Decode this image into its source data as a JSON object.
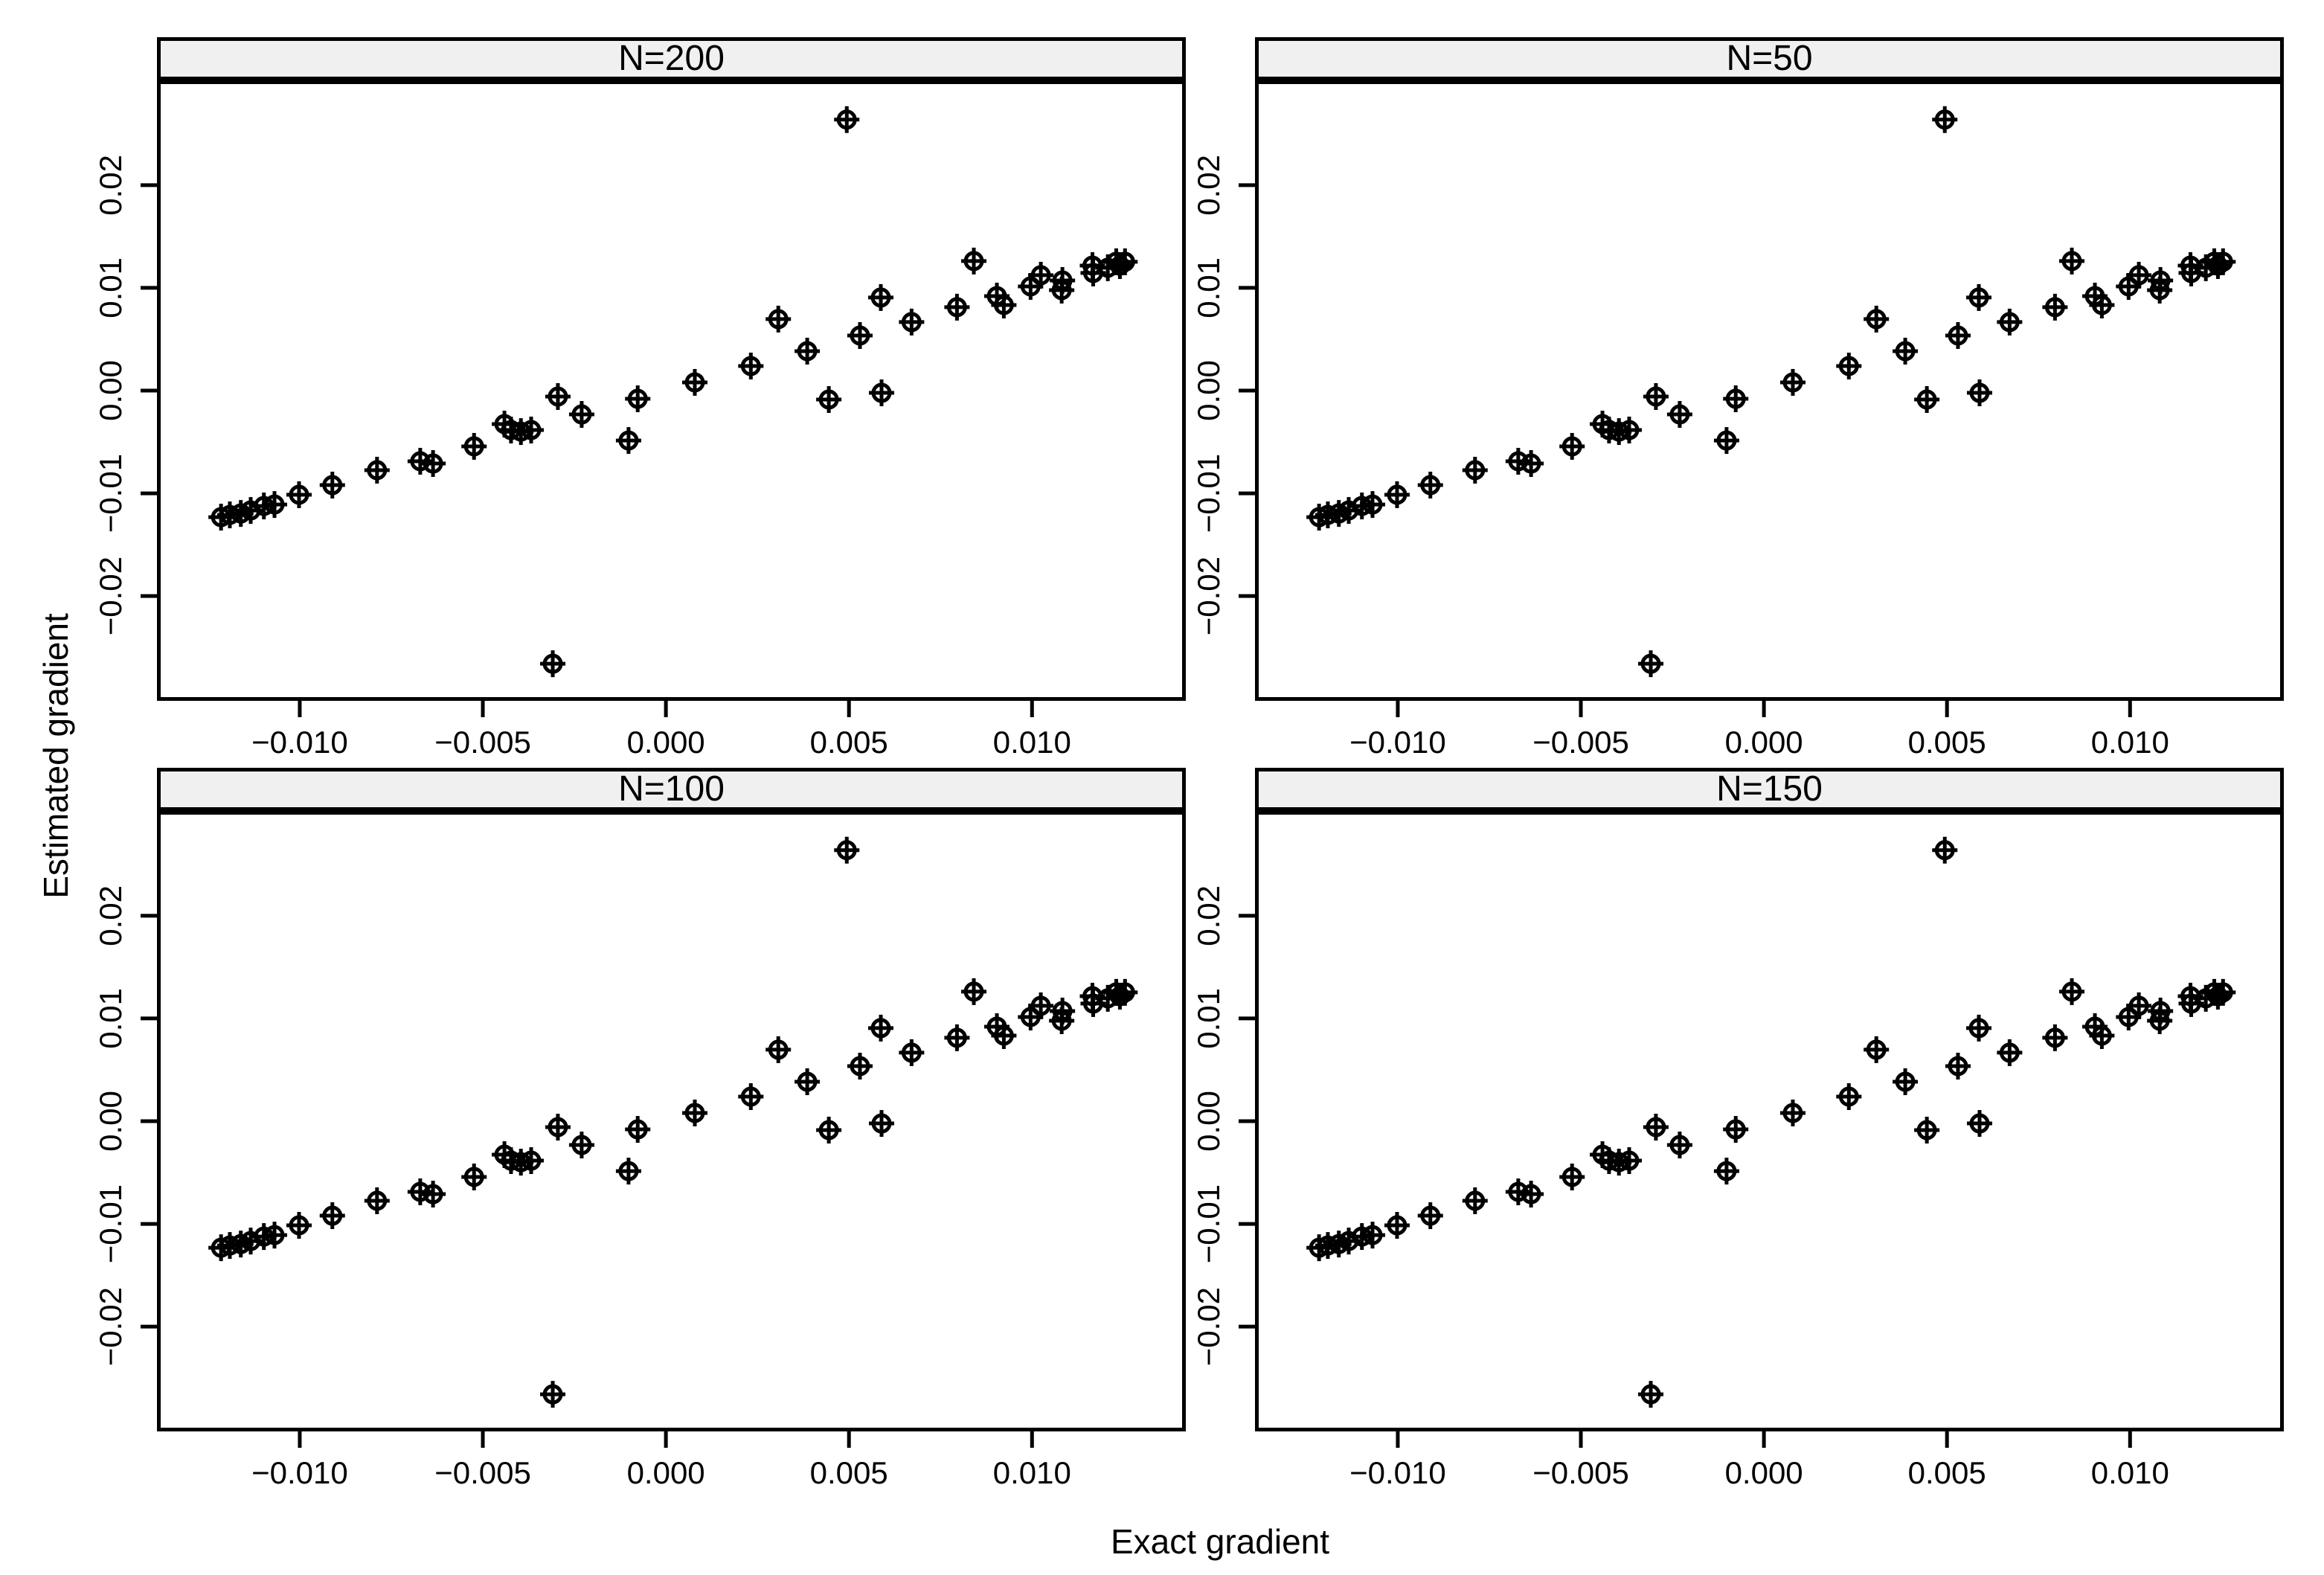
{
  "figure": {
    "xlabel": "Exact gradient",
    "ylabel": "Estimated gradient",
    "background": "#ffffff",
    "strip_background": "#f0f0f0",
    "line_color": "#000000"
  },
  "chart_data": {
    "type": "scatter",
    "title": "",
    "xlabel": "Exact gradient",
    "ylabel": "Estimated gradient",
    "marker": "circle-plus-crosshair",
    "marker_color": "#000000",
    "grid": false,
    "legend": false,
    "xlim": [
      -0.0139,
      0.0142
    ],
    "ylim": [
      -0.0302,
      0.0302
    ],
    "x_ticks": [
      -0.01,
      -0.005,
      0.0,
      0.005,
      0.01
    ],
    "x_tick_labels": [
      "−0.010",
      "−0.005",
      "0.000",
      "0.005",
      "0.010"
    ],
    "y_ticks": [
      0.02,
      0.01,
      0.0,
      -0.01,
      -0.02
    ],
    "y_tick_labels": [
      "0.02",
      "0.01",
      "0.00",
      "−0.01",
      "−0.02"
    ],
    "panels": [
      {
        "label": "N=200",
        "position": "top-left"
      },
      {
        "label": "N=50",
        "position": "top-right"
      },
      {
        "label": "N=100",
        "position": "bottom-left"
      },
      {
        "label": "N=150",
        "position": "bottom-right"
      }
    ],
    "note": "All four panels display the same estimated-vs-exact gradient points; estimates are nearly identical across sample sizes N.",
    "points": [
      [
        -0.01215,
        -0.01232
      ],
      [
        -0.01191,
        -0.0121
      ],
      [
        -0.01161,
        -0.01196
      ],
      [
        -0.01134,
        -0.01167
      ],
      [
        -0.01098,
        -0.01123
      ],
      [
        -0.01069,
        -0.01109
      ],
      [
        -0.01002,
        -0.01014
      ],
      [
        -0.00911,
        -0.0092
      ],
      [
        -0.00789,
        -0.00775
      ],
      [
        -0.00671,
        -0.00688
      ],
      [
        -0.00636,
        -0.0071
      ],
      [
        -0.00524,
        -0.00543
      ],
      [
        -0.00441,
        -0.00326
      ],
      [
        -0.00423,
        -0.00384
      ],
      [
        -0.00396,
        -0.00399
      ],
      [
        -0.00368,
        -0.00384
      ],
      [
        -0.00295,
        -0.00058
      ],
      [
        -0.0023,
        -0.00232
      ],
      [
        -0.00102,
        -0.00486
      ],
      [
        -0.00077,
        -0.0008
      ],
      [
        0.00079,
        0.0008
      ],
      [
        0.00232,
        0.00239
      ],
      [
        0.00307,
        0.00696
      ],
      [
        0.00386,
        0.00384
      ],
      [
        0.00445,
        -0.00087
      ],
      [
        0.0053,
        0.00536
      ],
      [
        0.00589,
        -0.00022
      ],
      [
        0.00587,
        0.00906
      ],
      [
        0.00671,
        0.00667
      ],
      [
        0.00795,
        0.00812
      ],
      [
        0.00841,
        0.01261
      ],
      [
        0.00904,
        0.0092
      ],
      [
        0.00923,
        0.00833
      ],
      [
        0.00996,
        0.01014
      ],
      [
        0.01024,
        0.01123
      ],
      [
        0.01081,
        0.00978
      ],
      [
        0.01083,
        0.01072
      ],
      [
        0.01165,
        0.01217
      ],
      [
        0.01167,
        0.01145
      ],
      [
        0.01207,
        0.01196
      ],
      [
        0.0123,
        0.01254
      ],
      [
        0.0124,
        0.01217
      ],
      [
        0.01254,
        0.01254
      ],
      [
        0.00494,
        0.02638
      ],
      [
        -0.00309,
        -0.02659
      ]
    ]
  }
}
